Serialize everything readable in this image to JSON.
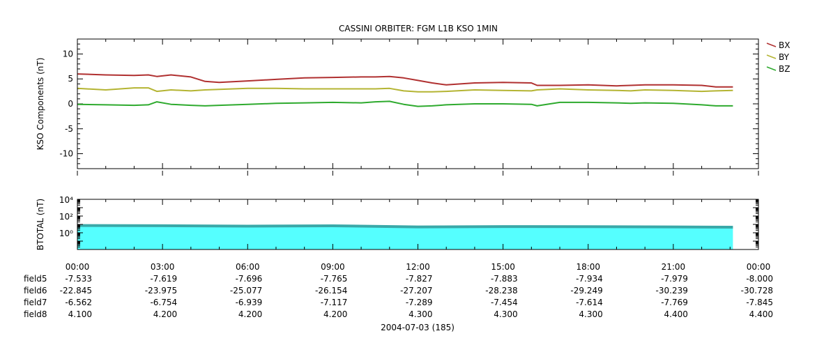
{
  "title": "CASSINI ORBITER: FGM L1B KSO 1MIN",
  "chart_data": [
    {
      "type": "line",
      "title": "CASSINI ORBITER: FGM L1B KSO 1MIN",
      "ylabel": "KSO Components (nT)",
      "ylim": [
        -13,
        13
      ],
      "yticks": [
        -10,
        -5,
        0,
        5,
        10
      ],
      "ytick_labels": [
        "-10",
        "-5",
        "0",
        "5",
        "10"
      ],
      "xlim_hours": [
        0,
        24
      ],
      "legend_position": "right",
      "grid": false,
      "x_hours": [
        0,
        1,
        2,
        2.5,
        2.8,
        3.3,
        4,
        4.5,
        5,
        6,
        7,
        8,
        9,
        10,
        10.5,
        11,
        11.5,
        12,
        12.5,
        13,
        14,
        15,
        16,
        16.2,
        17,
        18,
        19,
        19.5,
        20,
        21,
        22,
        22.5,
        23.1
      ],
      "series": [
        {
          "name": "BX",
          "color": "#b03030",
          "values": [
            6.0,
            5.8,
            5.7,
            5.8,
            5.5,
            5.8,
            5.4,
            4.5,
            4.3,
            4.6,
            4.9,
            5.2,
            5.3,
            5.4,
            5.4,
            5.5,
            5.2,
            4.7,
            4.2,
            3.8,
            4.2,
            4.3,
            4.2,
            3.7,
            3.7,
            3.8,
            3.6,
            3.7,
            3.8,
            3.8,
            3.7,
            3.4,
            3.4
          ]
        },
        {
          "name": "BY",
          "color": "#b4b432",
          "values": [
            3.1,
            2.8,
            3.2,
            3.2,
            2.5,
            2.8,
            2.6,
            2.8,
            2.9,
            3.1,
            3.1,
            3.0,
            3.0,
            3.0,
            3.0,
            3.1,
            2.6,
            2.4,
            2.4,
            2.5,
            2.8,
            2.7,
            2.6,
            2.8,
            3.0,
            2.8,
            2.7,
            2.6,
            2.8,
            2.7,
            2.5,
            2.6,
            2.7
          ]
        },
        {
          "name": "BZ",
          "color": "#2eaa2e",
          "values": [
            -0.1,
            -0.2,
            -0.3,
            -0.2,
            0.4,
            -0.1,
            -0.3,
            -0.4,
            -0.3,
            -0.1,
            0.1,
            0.2,
            0.3,
            0.2,
            0.4,
            0.5,
            -0.1,
            -0.5,
            -0.4,
            -0.2,
            0.0,
            0.0,
            -0.1,
            -0.4,
            0.3,
            0.3,
            0.2,
            0.1,
            0.2,
            0.1,
            -0.2,
            -0.4,
            -0.4
          ]
        }
      ]
    },
    {
      "type": "area",
      "ylabel": "BTOTAL (nT)",
      "yscale": "log",
      "ylim": [
        0.01,
        10000
      ],
      "yticks": [
        1,
        100,
        10000
      ],
      "ytick_labels": [
        "10⁰",
        "10²",
        "10⁴"
      ],
      "fill_color": "#55ffff",
      "line_color": "#3aa8a8",
      "x_hours": [
        0,
        3,
        6,
        9,
        12,
        15,
        18,
        21,
        23.1
      ],
      "values": [
        7.3,
        7.0,
        6.2,
        6.8,
        5.0,
        5.5,
        5.3,
        5.0,
        4.6
      ]
    }
  ],
  "xaxis": {
    "tick_labels": [
      "00:00",
      "03:00",
      "06:00",
      "09:00",
      "12:00",
      "15:00",
      "18:00",
      "21:00",
      "00:00"
    ],
    "date_label": "2004-07-03 (185)",
    "rows": [
      {
        "name": "field5",
        "values": [
          "-7.533",
          "-7.619",
          "-7.696",
          "-7.765",
          "-7.827",
          "-7.883",
          "-7.934",
          "-7.979",
          "-8.000"
        ]
      },
      {
        "name": "field6",
        "values": [
          "-22.845",
          "-23.975",
          "-25.077",
          "-26.154",
          "-27.207",
          "-28.238",
          "-29.249",
          "-30.239",
          "-30.728"
        ]
      },
      {
        "name": "field7",
        "values": [
          "-6.562",
          "-6.754",
          "-6.939",
          "-7.117",
          "-7.289",
          "-7.454",
          "-7.614",
          "-7.769",
          "-7.845"
        ]
      },
      {
        "name": "field8",
        "values": [
          "4.100",
          "4.200",
          "4.200",
          "4.200",
          "4.300",
          "4.300",
          "4.300",
          "4.400",
          "4.400"
        ]
      }
    ]
  }
}
